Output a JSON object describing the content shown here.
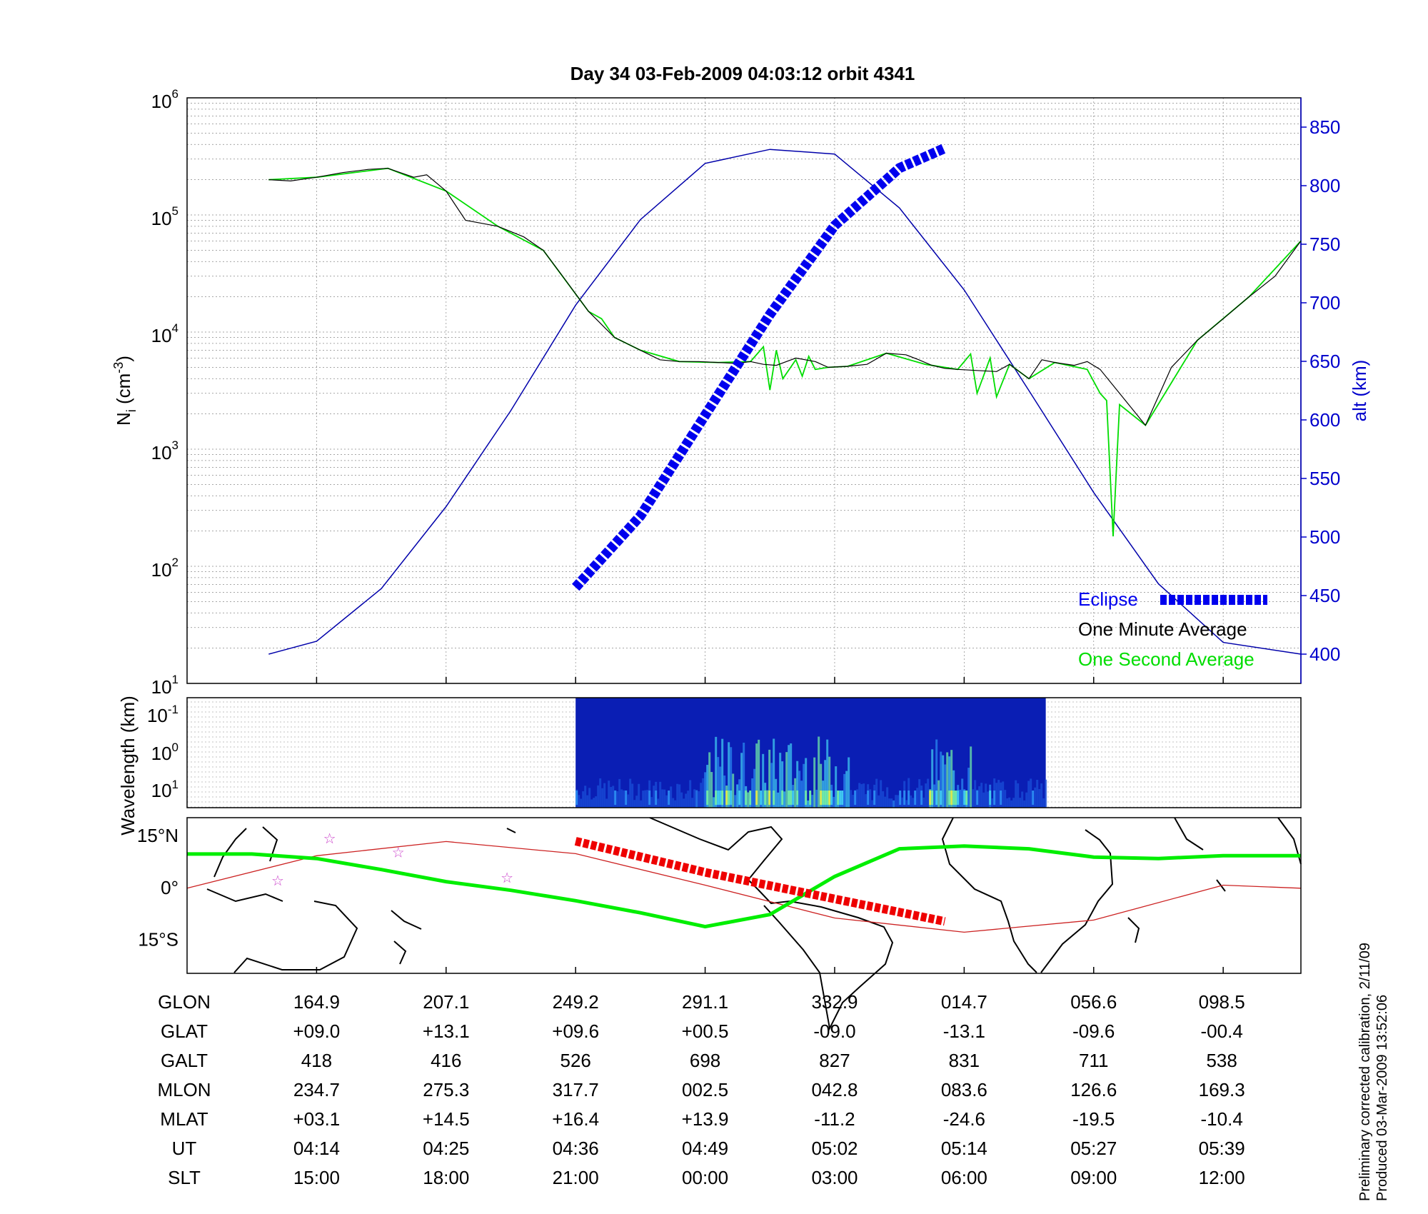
{
  "title": "Day 34  03-Feb-2009 04:03:12   orbit 4341",
  "footnote": {
    "line1": "Preliminary corrected calibration, 2/11/09",
    "line2": "Produced 03-Mar-2009 13:52:06"
  },
  "colors": {
    "density_minute": "#000000",
    "density_second": "#00dd00",
    "altitude": "#0000aa",
    "eclipse": "#0000ee",
    "grid": "#888888",
    "right_axis": "#0000cc",
    "ground_track": "#cc2222",
    "eclipse_track": "#ee0000",
    "mag_equator": "#00ee00",
    "star": "#cc44cc"
  },
  "chart_data": [
    {
      "type": "line",
      "panel": "density",
      "ylabel_base": "N",
      "ylabel_sub": "i",
      "ylabel_unit": " (cm",
      "ylabel_unit_sup": "-3",
      "ylabel_close": ")",
      "yscale": "log",
      "ylim": [
        10,
        1000000
      ],
      "yticks": [
        {
          "base": "10",
          "exp": "1"
        },
        {
          "base": "10",
          "exp": "2"
        },
        {
          "base": "10",
          "exp": "3"
        },
        {
          "base": "10",
          "exp": "4"
        },
        {
          "base": "10",
          "exp": "5"
        },
        {
          "base": "10",
          "exp": "6"
        }
      ],
      "y2label": "alt (km)",
      "y2lim": [
        375,
        875
      ],
      "y2ticks": [
        "400",
        "450",
        "500",
        "550",
        "600",
        "650",
        "700",
        "750",
        "800",
        "850"
      ],
      "xlim": [
        0,
        8.6
      ],
      "grid": true,
      "legend_position": "bottom-right",
      "legend": [
        "Eclipse",
        "One Minute Average",
        "One Second Average"
      ],
      "series": [
        {
          "name": "One Minute Average",
          "x": [
            0.63,
            0.8,
            1.0,
            1.2,
            1.4,
            1.55,
            1.75,
            1.85,
            2.0,
            2.15,
            2.4,
            2.6,
            2.75,
            2.9,
            3.1,
            3.3,
            3.5,
            3.65,
            3.8,
            3.95,
            4.1,
            4.25,
            4.35,
            4.45,
            4.55,
            4.7,
            4.85,
            4.95,
            5.1,
            5.25,
            5.4,
            5.55,
            5.65,
            5.75,
            5.85,
            5.95,
            6.1,
            6.25,
            6.35,
            6.5,
            6.6,
            6.7,
            6.85,
            6.95,
            7.05,
            7.2,
            7.4,
            7.6,
            7.8,
            8.0,
            8.2,
            8.4,
            8.6
          ],
          "y": [
            200000,
            195000,
            210000,
            230000,
            245000,
            250000,
            210000,
            220000,
            160000,
            90000,
            80000,
            65000,
            50000,
            30000,
            15000,
            9000,
            7000,
            5800,
            5600,
            5600,
            5500,
            5400,
            5600,
            5300,
            5200,
            6000,
            5600,
            5000,
            5100,
            5300,
            6600,
            6400,
            5800,
            5200,
            4900,
            4800,
            4700,
            4600,
            5300,
            4000,
            5800,
            5500,
            5200,
            5600,
            4800,
            3000,
            1600,
            5000,
            8500,
            13000,
            20000,
            30000,
            60000
          ]
        },
        {
          "name": "One Second Average",
          "x": [
            0.63,
            1.0,
            1.55,
            2.0,
            2.4,
            2.75,
            3.1,
            3.2,
            3.3,
            3.5,
            3.8,
            4.1,
            4.35,
            4.45,
            4.5,
            4.55,
            4.6,
            4.7,
            4.75,
            4.8,
            4.85,
            4.95,
            5.1,
            5.4,
            5.7,
            5.95,
            6.05,
            6.1,
            6.2,
            6.25,
            6.35,
            6.5,
            6.7,
            6.95,
            7.05,
            7.1,
            7.15,
            7.2,
            7.4,
            7.8,
            8.2,
            8.6
          ],
          "y": [
            200000,
            210000,
            250000,
            160000,
            80000,
            50000,
            15000,
            13000,
            9000,
            7000,
            5600,
            5500,
            5600,
            7500,
            3200,
            7000,
            4000,
            5800,
            4200,
            6200,
            4800,
            5000,
            5100,
            6600,
            5300,
            4800,
            6500,
            3000,
            6000,
            2800,
            5300,
            4000,
            5500,
            4800,
            3000,
            2600,
            180,
            2400,
            1600,
            8500,
            20000,
            60000
          ]
        },
        {
          "name": "Altitude",
          "axis": "right",
          "x": [
            0.63,
            1.0,
            1.5,
            2.0,
            2.5,
            3.0,
            3.5,
            4.0,
            4.5,
            5.0,
            5.5,
            6.0,
            6.5,
            7.0,
            7.5,
            8.0,
            8.6
          ],
          "y": [
            400,
            411,
            456,
            526,
            608,
            698,
            771,
            819,
            831,
            827,
            781,
            711,
            625,
            538,
            460,
            410,
            400
          ]
        },
        {
          "name": "Eclipse",
          "axis": "right",
          "x": [
            3.0,
            3.5,
            4.0,
            4.5,
            5.0,
            5.5,
            5.85
          ],
          "y": [
            457,
            518,
            604,
            690,
            766,
            815,
            832
          ]
        }
      ]
    },
    {
      "type": "heatmap",
      "panel": "spectrogram",
      "ylabel": "Wavelength (km)",
      "yticks": [
        {
          "base": "10",
          "exp": "-1"
        },
        {
          "base": "10",
          "exp": "0"
        },
        {
          "base": "10",
          "exp": "1"
        }
      ],
      "x_start": 3.0,
      "x_end": 6.63
    },
    {
      "type": "map",
      "panel": "ground-track",
      "yticks": [
        "15°N",
        "0°",
        "15°S"
      ],
      "lat_ticks": [
        15,
        0,
        -15
      ],
      "lat_range": [
        20,
        -25
      ],
      "ground_track": {
        "x": [
          0.0,
          1.0,
          2.0,
          3.0,
          4.0,
          5.0,
          6.0,
          7.0,
          8.0,
          8.6
        ],
        "lat": [
          -0.4,
          9.0,
          13.1,
          9.6,
          0.5,
          -9.0,
          -13.1,
          -9.6,
          0.5,
          -0.4
        ]
      },
      "eclipse_track": {
        "x": [
          3.0,
          4.0,
          5.0,
          5.85
        ],
        "lat": [
          13.2,
          4.2,
          -3.5,
          -10.0
        ]
      },
      "magnetic_equator": {
        "x": [
          0.0,
          0.5,
          1.0,
          1.5,
          2.0,
          2.5,
          3.0,
          3.5,
          4.0,
          4.5,
          5.0,
          5.5,
          6.0,
          6.5,
          7.0,
          7.5,
          8.0,
          8.6
        ],
        "lat": [
          9.5,
          9.5,
          8.2,
          5.0,
          1.5,
          -1.0,
          -4.0,
          -7.5,
          -11.5,
          -8.0,
          3.0,
          11.0,
          11.8,
          11.0,
          8.6,
          8.2,
          9.0,
          9.0
        ]
      },
      "stars": [
        {
          "x": 1.1,
          "lat": 14.0
        },
        {
          "x": 1.63,
          "lat": 10.0
        },
        {
          "x": 2.47,
          "lat": 2.7
        },
        {
          "x": 0.7,
          "lat": 1.8
        }
      ]
    }
  ],
  "table": {
    "row_labels": [
      "GLON",
      "GLAT",
      "GALT",
      "MLON",
      "MLAT",
      "UT",
      "SLT"
    ],
    "columns": [
      [
        "164.9",
        "+09.0",
        "418",
        "234.7",
        "+03.1",
        "04:14",
        "15:00"
      ],
      [
        "207.1",
        "+13.1",
        "416",
        "275.3",
        "+14.5",
        "04:25",
        "18:00"
      ],
      [
        "249.2",
        "+09.6",
        "526",
        "317.7",
        "+16.4",
        "04:36",
        "21:00"
      ],
      [
        "291.1",
        "+00.5",
        "698",
        "002.5",
        "+13.9",
        "04:49",
        "00:00"
      ],
      [
        "332.9",
        "-09.0",
        "827",
        "042.8",
        "-11.2",
        "05:02",
        "03:00"
      ],
      [
        "014.7",
        "-13.1",
        "831",
        "083.6",
        "-24.6",
        "05:14",
        "06:00"
      ],
      [
        "056.6",
        "-09.6",
        "711",
        "126.6",
        "-19.5",
        "05:27",
        "09:00"
      ],
      [
        "098.5",
        "-00.4",
        "538",
        "169.3",
        "-10.4",
        "05:39",
        "12:00"
      ]
    ]
  }
}
